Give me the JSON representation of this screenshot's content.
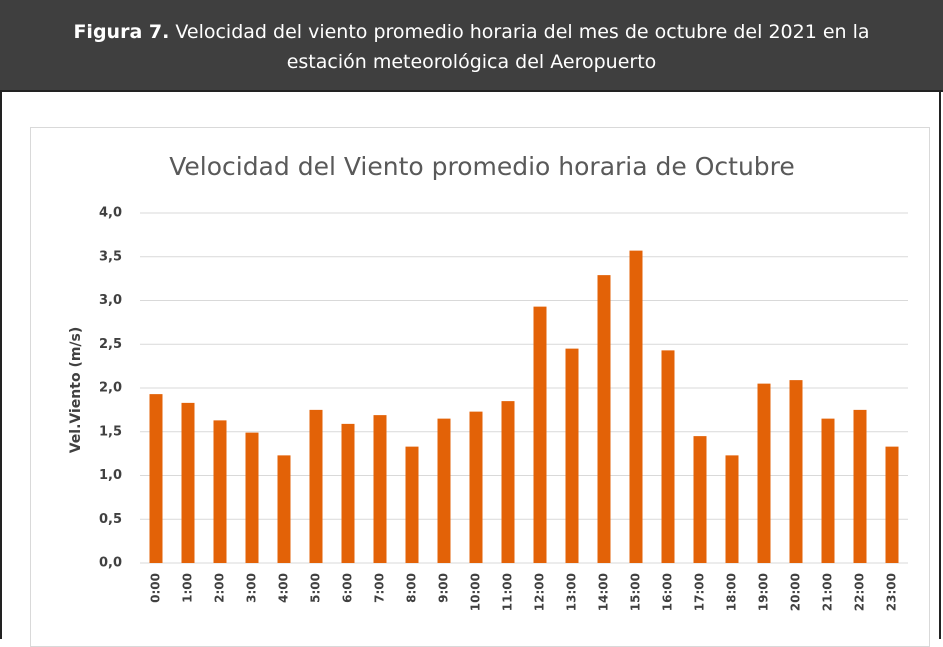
{
  "figure_label": "Figura 7.",
  "caption": "Velocidad del viento promedio horaria del mes de octubre del 2021 en la estación meteorológica del Aeropuerto",
  "chart_data": {
    "type": "bar",
    "title": "Velocidad del Viento promedio horaria de Octubre",
    "y_label": "Vel.Viento (m/s)",
    "categories": [
      "0:00",
      "1:00",
      "2:00",
      "3:00",
      "4:00",
      "5:00",
      "6:00",
      "7:00",
      "8:00",
      "9:00",
      "10:00",
      "11:00",
      "12:00",
      "13:00",
      "14:00",
      "15:00",
      "16:00",
      "17:00",
      "18:00",
      "19:00",
      "20:00",
      "21:00",
      "22:00",
      "23:00"
    ],
    "values": [
      1.93,
      1.83,
      1.63,
      1.49,
      1.23,
      1.75,
      1.59,
      1.69,
      1.33,
      1.65,
      1.73,
      1.85,
      2.93,
      2.45,
      3.29,
      3.57,
      2.43,
      1.45,
      1.23,
      2.05,
      2.09,
      1.65,
      1.75,
      1.33
    ],
    "color": "#e36207",
    "ylim": [
      0,
      4
    ],
    "yticks": [
      {
        "value": 0,
        "label": "0,0"
      },
      {
        "value": 0.5,
        "label": "0,5"
      },
      {
        "value": 1,
        "label": "1,0"
      },
      {
        "value": 1.5,
        "label": "1,5"
      },
      {
        "value": 2,
        "label": "2,0"
      },
      {
        "value": 2.5,
        "label": "2,5"
      },
      {
        "value": 3,
        "label": "3,0"
      },
      {
        "value": 3.5,
        "label": "3,5"
      },
      {
        "value": 4,
        "label": "4,0"
      }
    ],
    "grid": true
  }
}
